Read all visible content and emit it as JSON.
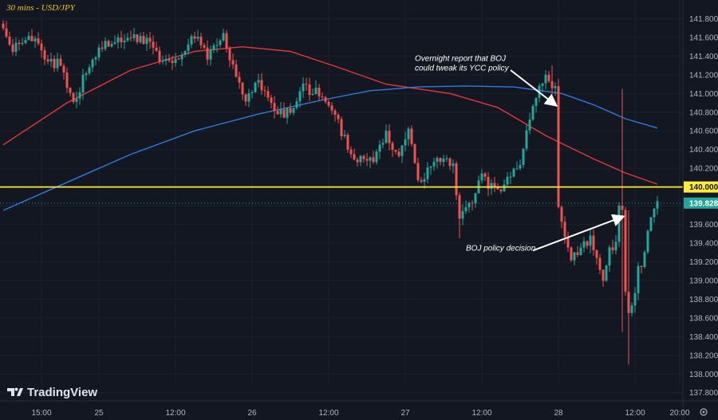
{
  "title": "30 mins - USD/JPY",
  "logo": "TradingView",
  "colors": {
    "background": "#131722",
    "up": "#26a69a",
    "down": "#ef5350",
    "ma_red": "#e53935",
    "ma_blue": "#2f7bdc",
    "level": "#ffeb3b",
    "grid": "#1e2230"
  },
  "chart_data": {
    "type": "candlestick",
    "y_range": [
      137.9,
      142.0
    ],
    "y_ticks": [
      141.8,
      141.6,
      141.4,
      141.2,
      141.0,
      140.8,
      140.6,
      140.4,
      140.2,
      140.0,
      139.8,
      139.6,
      139.4,
      139.2,
      139.0,
      138.8,
      138.6,
      138.4,
      138.2,
      138.0,
      137.8
    ],
    "y_tick_labels": [
      "141.800",
      "141.600",
      "141.400",
      "141.200",
      "141.000",
      "140.800",
      "140.600",
      "140.400",
      "140.200",
      "140.000",
      "139.800",
      "139.600",
      "139.400",
      "139.200",
      "139.000",
      "138.800",
      "138.600",
      "138.400",
      "138.200",
      "138.000",
      "137.800"
    ],
    "x_range": [
      0,
      209
    ],
    "x_ticks": [
      {
        "x": 12,
        "label": "15:00"
      },
      {
        "x": 30,
        "label": "25"
      },
      {
        "x": 54,
        "label": "12:00"
      },
      {
        "x": 78,
        "label": "26"
      },
      {
        "x": 102,
        "label": "12:00"
      },
      {
        "x": 126,
        "label": "27"
      },
      {
        "x": 150,
        "label": "12:00"
      },
      {
        "x": 174,
        "label": "28"
      },
      {
        "x": 198,
        "label": "12:00"
      },
      {
        "x": 212,
        "label": "20:00"
      }
    ],
    "horizontal_level": {
      "value": 140.0,
      "label": "140.000"
    },
    "last_price": {
      "value": 139.828,
      "label": "139.828"
    },
    "anchors": [
      {
        "x": 0,
        "price": 141.7
      },
      {
        "x": 3,
        "price": 141.5
      },
      {
        "x": 6,
        "price": 141.55
      },
      {
        "x": 10,
        "price": 141.62
      },
      {
        "x": 14,
        "price": 141.35
      },
      {
        "x": 18,
        "price": 141.3
      },
      {
        "x": 22,
        "price": 140.9
      },
      {
        "x": 25,
        "price": 141.15
      },
      {
        "x": 30,
        "price": 141.5
      },
      {
        "x": 38,
        "price": 141.6
      },
      {
        "x": 45,
        "price": 141.55
      },
      {
        "x": 50,
        "price": 141.3
      },
      {
        "x": 56,
        "price": 141.45
      },
      {
        "x": 61,
        "price": 141.65
      },
      {
        "x": 64,
        "price": 141.4
      },
      {
        "x": 69,
        "price": 141.6
      },
      {
        "x": 72,
        "price": 141.3
      },
      {
        "x": 76,
        "price": 140.95
      },
      {
        "x": 80,
        "price": 141.1
      },
      {
        "x": 84,
        "price": 140.85
      },
      {
        "x": 88,
        "price": 140.75
      },
      {
        "x": 94,
        "price": 141.05
      },
      {
        "x": 99,
        "price": 141.0
      },
      {
        "x": 104,
        "price": 140.8
      },
      {
        "x": 106,
        "price": 140.6
      },
      {
        "x": 108,
        "price": 140.4
      },
      {
        "x": 112,
        "price": 140.3
      },
      {
        "x": 116,
        "price": 140.25
      },
      {
        "x": 120,
        "price": 140.55
      },
      {
        "x": 124,
        "price": 140.3
      },
      {
        "x": 127,
        "price": 140.6
      },
      {
        "x": 130,
        "price": 140.05
      },
      {
        "x": 134,
        "price": 140.2
      },
      {
        "x": 138,
        "price": 140.35
      },
      {
        "x": 141,
        "price": 140.2
      },
      {
        "x": 143,
        "price": 139.65
      },
      {
        "x": 146,
        "price": 139.8
      },
      {
        "x": 150,
        "price": 140.1
      },
      {
        "x": 154,
        "price": 139.95
      },
      {
        "x": 158,
        "price": 140.05
      },
      {
        "x": 162,
        "price": 140.25
      },
      {
        "x": 165,
        "price": 140.7
      },
      {
        "x": 168,
        "price": 141.1
      },
      {
        "x": 170,
        "price": 141.2
      },
      {
        "x": 172,
        "price": 141.05
      },
      {
        "x": 173,
        "price": 141.1
      },
      {
        "x": 174,
        "price": 139.8
      },
      {
        "x": 176,
        "price": 139.5
      },
      {
        "x": 178,
        "price": 139.2
      },
      {
        "x": 181,
        "price": 139.35
      },
      {
        "x": 184,
        "price": 139.45
      },
      {
        "x": 186,
        "price": 139.25
      },
      {
        "x": 188,
        "price": 139.0
      },
      {
        "x": 190,
        "price": 139.3
      },
      {
        "x": 192,
        "price": 139.4
      },
      {
        "x": 193,
        "price": 139.8
      },
      {
        "x": 194,
        "price": 139.7
      },
      {
        "x": 195,
        "price": 138.9
      },
      {
        "x": 196,
        "price": 138.6
      },
      {
        "x": 197,
        "price": 138.7
      },
      {
        "x": 199,
        "price": 139.1
      },
      {
        "x": 201,
        "price": 139.3
      },
      {
        "x": 203,
        "price": 139.7
      },
      {
        "x": 205,
        "price": 139.83
      }
    ],
    "special_wicks": [
      {
        "x": 194,
        "high": 141.05,
        "low": 138.45
      },
      {
        "x": 196,
        "high": 139.75,
        "low": 138.1
      },
      {
        "x": 172,
        "high": 141.3,
        "low": 140.95
      },
      {
        "x": 143,
        "high": 139.8,
        "low": 139.45
      }
    ],
    "ma_slow": {
      "name": "",
      "points": [
        [
          0,
          140.45
        ],
        [
          20,
          140.9
        ],
        [
          40,
          141.25
        ],
        [
          60,
          141.45
        ],
        [
          75,
          141.5
        ],
        [
          90,
          141.45
        ],
        [
          105,
          141.28
        ],
        [
          120,
          141.1
        ],
        [
          140,
          141.0
        ],
        [
          155,
          140.85
        ],
        [
          170,
          140.55
        ],
        [
          185,
          140.3
        ],
        [
          195,
          140.15
        ],
        [
          205,
          140.03
        ]
      ]
    },
    "ma_long": {
      "name": "",
      "points": [
        [
          0,
          139.75
        ],
        [
          20,
          140.05
        ],
        [
          40,
          140.35
        ],
        [
          60,
          140.6
        ],
        [
          80,
          140.78
        ],
        [
          100,
          140.93
        ],
        [
          115,
          141.03
        ],
        [
          130,
          141.07
        ],
        [
          145,
          141.08
        ],
        [
          160,
          141.07
        ],
        [
          175,
          141.0
        ],
        [
          185,
          140.88
        ],
        [
          195,
          140.73
        ],
        [
          205,
          140.63
        ]
      ]
    },
    "annotations": [
      {
        "lines": [
          "Overnight report that BOJ",
          "could tweak its YCC policy"
        ],
        "text_x": 129,
        "text_price": 141.35,
        "arrow_from_x": 159,
        "arrow_from_price": 141.25,
        "arrow_to_x": 173,
        "arrow_to_price": 140.88
      },
      {
        "lines": [
          "BOJ policy decision"
        ],
        "text_x": 145,
        "text_price": 139.32,
        "arrow_from_x": 166,
        "arrow_from_price": 139.32,
        "arrow_to_x": 194,
        "arrow_to_price": 139.68
      }
    ]
  }
}
